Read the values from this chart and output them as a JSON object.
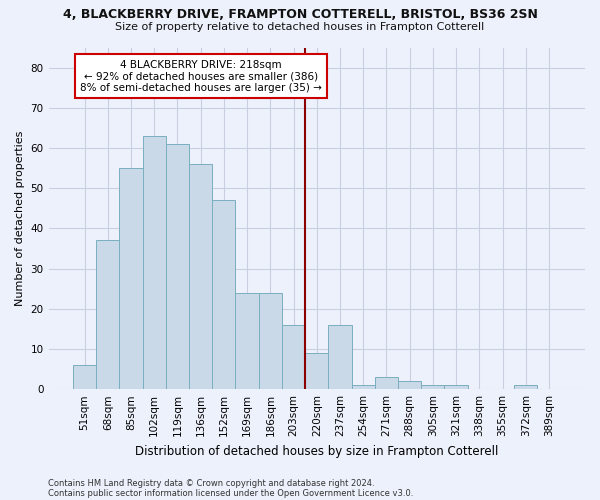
{
  "title1": "4, BLACKBERRY DRIVE, FRAMPTON COTTERELL, BRISTOL, BS36 2SN",
  "title2": "Size of property relative to detached houses in Frampton Cotterell",
  "xlabel": "Distribution of detached houses by size in Frampton Cotterell",
  "ylabel": "Number of detached properties",
  "categories": [
    "51sqm",
    "68sqm",
    "85sqm",
    "102sqm",
    "119sqm",
    "136sqm",
    "152sqm",
    "169sqm",
    "186sqm",
    "203sqm",
    "220sqm",
    "237sqm",
    "254sqm",
    "271sqm",
    "288sqm",
    "305sqm",
    "321sqm",
    "338sqm",
    "355sqm",
    "372sqm",
    "389sqm"
  ],
  "values": [
    6,
    37,
    55,
    63,
    61,
    56,
    47,
    24,
    24,
    16,
    9,
    16,
    1,
    3,
    2,
    1,
    1,
    0,
    0,
    1,
    0
  ],
  "bar_color": "#c9d9e8",
  "bar_edge_color": "#7aafc0",
  "vline_x_index": 10,
  "vline_color": "#8b0000",
  "annotation_text": "4 BLACKBERRY DRIVE: 218sqm\n← 92% of detached houses are smaller (386)\n8% of semi-detached houses are larger (35) →",
  "annotation_box_color": "#ffffff",
  "annotation_box_edge": "#cc0000",
  "ylim": [
    0,
    85
  ],
  "yticks": [
    0,
    10,
    20,
    30,
    40,
    50,
    60,
    70,
    80
  ],
  "grid_color": "#c8cfe0",
  "background_color": "#edf1fb",
  "footer1": "Contains HM Land Registry data © Crown copyright and database right 2024.",
  "footer2": "Contains public sector information licensed under the Open Government Licence v3.0.",
  "title1_fontsize": 9,
  "title2_fontsize": 8,
  "xlabel_fontsize": 8.5,
  "ylabel_fontsize": 8,
  "tick_fontsize": 7.5,
  "footer_fontsize": 6
}
